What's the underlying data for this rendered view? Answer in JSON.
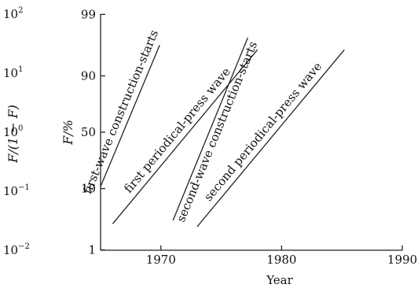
{
  "chart_data": {
    "type": "line",
    "title": "",
    "xlabel": "Year",
    "ylabel": "F/%",
    "ylabel_secondary": "F/(1 − F)",
    "xlim": [
      1965,
      1990
    ],
    "ylim_ratio": [
      0.01,
      100
    ],
    "y_scale": "logit",
    "x_ticks": [
      1970,
      1980,
      1990
    ],
    "y_ticks_percent": [
      {
        "label": "99",
        "ratio": 99
      },
      {
        "label": "90",
        "ratio": 9
      },
      {
        "label": "50",
        "ratio": 1
      },
      {
        "label": "10",
        "ratio": 0.111
      },
      {
        "label": "1",
        "ratio": 0.0101
      }
    ],
    "y_ticks_ratio": [
      {
        "base": "10",
        "exp": "2",
        "ratio": 100
      },
      {
        "base": "10",
        "exp": "1",
        "ratio": 10
      },
      {
        "base": "10",
        "exp": "0",
        "ratio": 1
      },
      {
        "base": "10",
        "exp": "−1",
        "ratio": 0.1
      },
      {
        "base": "10",
        "exp": "−2",
        "ratio": 0.01
      }
    ],
    "grid": false,
    "legend": "none",
    "series": [
      {
        "name": "first-wave construction-starts",
        "x": [
          1965.0,
          1969.9
        ],
        "y_ratio": [
          0.12,
          30
        ]
      },
      {
        "name": "first periodical-press wave",
        "x": [
          1966.0,
          1978.0
        ],
        "y_ratio": [
          0.028,
          25
        ]
      },
      {
        "name": "second-wave construction-starts",
        "x": [
          1971.0,
          1977.2
        ],
        "y_ratio": [
          0.032,
          40
        ]
      },
      {
        "name": "second periodical-press wave",
        "x": [
          1973.0,
          1985.2
        ],
        "y_ratio": [
          0.025,
          25
        ]
      }
    ]
  }
}
